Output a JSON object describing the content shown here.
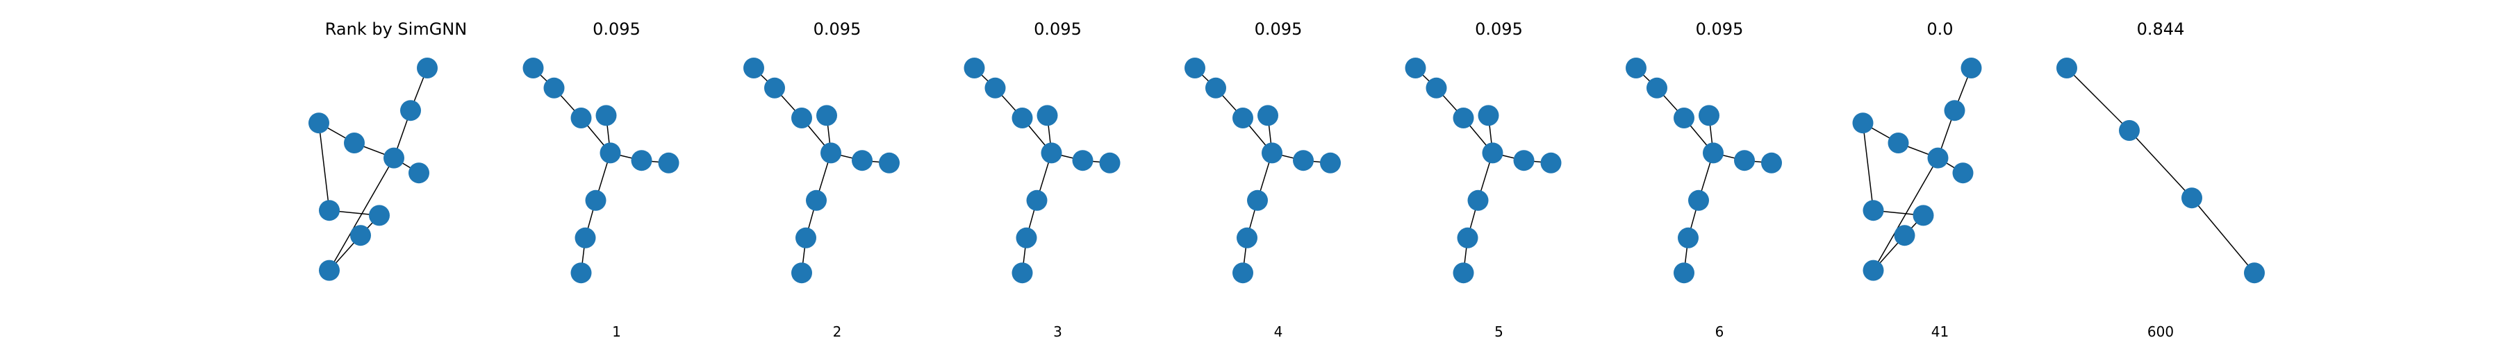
{
  "figure": {
    "node_color": "#1f77b4",
    "edge_color": "#000000",
    "background": "#ffffff"
  },
  "panels": [
    {
      "title": "Rank by SimGNN",
      "rank": "",
      "graph": {
        "nodes": [
          [
            0.65,
            0.05
          ],
          [
            0.57,
            0.22
          ],
          [
            0.49,
            0.41
          ],
          [
            0.61,
            0.47
          ],
          [
            0.3,
            0.35
          ],
          [
            0.13,
            0.27
          ],
          [
            0.18,
            0.62
          ],
          [
            0.42,
            0.64
          ],
          [
            0.33,
            0.72
          ],
          [
            0.18,
            0.86
          ]
        ],
        "edges": [
          [
            0,
            1
          ],
          [
            1,
            2
          ],
          [
            2,
            3
          ],
          [
            2,
            4
          ],
          [
            4,
            5
          ],
          [
            5,
            6
          ],
          [
            6,
            7
          ],
          [
            7,
            8
          ],
          [
            8,
            9
          ],
          [
            9,
            2
          ]
        ]
      }
    },
    {
      "title": "0.095",
      "rank": "1",
      "graph": {
        "nodes": [
          [
            0.1,
            0.05
          ],
          [
            0.2,
            0.13
          ],
          [
            0.33,
            0.25
          ],
          [
            0.47,
            0.39
          ],
          [
            0.45,
            0.24
          ],
          [
            0.62,
            0.42
          ],
          [
            0.75,
            0.43
          ],
          [
            0.4,
            0.58
          ],
          [
            0.35,
            0.73
          ],
          [
            0.33,
            0.87
          ]
        ],
        "edges": [
          [
            0,
            1
          ],
          [
            1,
            2
          ],
          [
            2,
            3
          ],
          [
            3,
            4
          ],
          [
            3,
            5
          ],
          [
            5,
            6
          ],
          [
            3,
            7
          ],
          [
            7,
            8
          ],
          [
            8,
            9
          ]
        ]
      }
    },
    {
      "title": "0.095",
      "rank": "2",
      "graph": {
        "nodes": [
          [
            0.1,
            0.05
          ],
          [
            0.2,
            0.13
          ],
          [
            0.33,
            0.25
          ],
          [
            0.47,
            0.39
          ],
          [
            0.45,
            0.24
          ],
          [
            0.62,
            0.42
          ],
          [
            0.75,
            0.43
          ],
          [
            0.4,
            0.58
          ],
          [
            0.35,
            0.73
          ],
          [
            0.33,
            0.87
          ]
        ],
        "edges": [
          [
            0,
            1
          ],
          [
            1,
            2
          ],
          [
            2,
            3
          ],
          [
            3,
            4
          ],
          [
            3,
            5
          ],
          [
            5,
            6
          ],
          [
            3,
            7
          ],
          [
            7,
            8
          ],
          [
            8,
            9
          ]
        ]
      }
    },
    {
      "title": "0.095",
      "rank": "3",
      "graph": {
        "nodes": [
          [
            0.1,
            0.05
          ],
          [
            0.2,
            0.13
          ],
          [
            0.33,
            0.25
          ],
          [
            0.47,
            0.39
          ],
          [
            0.45,
            0.24
          ],
          [
            0.62,
            0.42
          ],
          [
            0.75,
            0.43
          ],
          [
            0.4,
            0.58
          ],
          [
            0.35,
            0.73
          ],
          [
            0.33,
            0.87
          ]
        ],
        "edges": [
          [
            0,
            1
          ],
          [
            1,
            2
          ],
          [
            2,
            3
          ],
          [
            3,
            4
          ],
          [
            3,
            5
          ],
          [
            5,
            6
          ],
          [
            3,
            7
          ],
          [
            7,
            8
          ],
          [
            8,
            9
          ]
        ]
      }
    },
    {
      "title": "0.095",
      "rank": "4",
      "graph": {
        "nodes": [
          [
            0.1,
            0.05
          ],
          [
            0.2,
            0.13
          ],
          [
            0.33,
            0.25
          ],
          [
            0.47,
            0.39
          ],
          [
            0.45,
            0.24
          ],
          [
            0.62,
            0.42
          ],
          [
            0.75,
            0.43
          ],
          [
            0.4,
            0.58
          ],
          [
            0.35,
            0.73
          ],
          [
            0.33,
            0.87
          ]
        ],
        "edges": [
          [
            0,
            1
          ],
          [
            1,
            2
          ],
          [
            2,
            3
          ],
          [
            3,
            4
          ],
          [
            3,
            5
          ],
          [
            5,
            6
          ],
          [
            3,
            7
          ],
          [
            7,
            8
          ],
          [
            8,
            9
          ]
        ]
      }
    },
    {
      "title": "0.095",
      "rank": "5",
      "graph": {
        "nodes": [
          [
            0.1,
            0.05
          ],
          [
            0.2,
            0.13
          ],
          [
            0.33,
            0.25
          ],
          [
            0.47,
            0.39
          ],
          [
            0.45,
            0.24
          ],
          [
            0.62,
            0.42
          ],
          [
            0.75,
            0.43
          ],
          [
            0.4,
            0.58
          ],
          [
            0.35,
            0.73
          ],
          [
            0.33,
            0.87
          ]
        ],
        "edges": [
          [
            0,
            1
          ],
          [
            1,
            2
          ],
          [
            2,
            3
          ],
          [
            3,
            4
          ],
          [
            3,
            5
          ],
          [
            5,
            6
          ],
          [
            3,
            7
          ],
          [
            7,
            8
          ],
          [
            8,
            9
          ]
        ]
      }
    },
    {
      "title": "0.095",
      "rank": "6",
      "graph": {
        "nodes": [
          [
            0.1,
            0.05
          ],
          [
            0.2,
            0.13
          ],
          [
            0.33,
            0.25
          ],
          [
            0.47,
            0.39
          ],
          [
            0.45,
            0.24
          ],
          [
            0.62,
            0.42
          ],
          [
            0.75,
            0.43
          ],
          [
            0.4,
            0.58
          ],
          [
            0.35,
            0.73
          ],
          [
            0.33,
            0.87
          ]
        ],
        "edges": [
          [
            0,
            1
          ],
          [
            1,
            2
          ],
          [
            2,
            3
          ],
          [
            3,
            4
          ],
          [
            3,
            5
          ],
          [
            5,
            6
          ],
          [
            3,
            7
          ],
          [
            7,
            8
          ],
          [
            8,
            9
          ]
        ]
      }
    },
    {
      "title": "0.0",
      "rank": "41",
      "graph": {
        "nodes": [
          [
            0.65,
            0.05
          ],
          [
            0.57,
            0.22
          ],
          [
            0.49,
            0.41
          ],
          [
            0.61,
            0.47
          ],
          [
            0.3,
            0.35
          ],
          [
            0.13,
            0.27
          ],
          [
            0.18,
            0.62
          ],
          [
            0.42,
            0.64
          ],
          [
            0.33,
            0.72
          ],
          [
            0.18,
            0.86
          ]
        ],
        "edges": [
          [
            0,
            1
          ],
          [
            1,
            2
          ],
          [
            2,
            3
          ],
          [
            2,
            4
          ],
          [
            4,
            5
          ],
          [
            5,
            6
          ],
          [
            6,
            7
          ],
          [
            7,
            8
          ],
          [
            8,
            9
          ],
          [
            9,
            2
          ]
        ]
      }
    },
    {
      "title": "0.844",
      "rank": "600",
      "graph": {
        "nodes": [
          [
            0.05,
            0.05
          ],
          [
            0.35,
            0.3
          ],
          [
            0.65,
            0.57
          ],
          [
            0.95,
            0.87
          ]
        ],
        "edges": [
          [
            0,
            1
          ],
          [
            1,
            2
          ],
          [
            2,
            3
          ]
        ]
      }
    }
  ]
}
